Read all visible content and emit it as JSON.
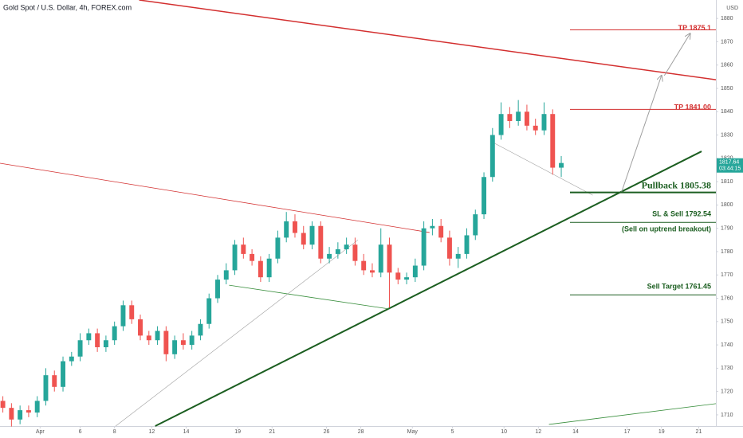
{
  "chart_data": {
    "type": "candlestick",
    "title": "Gold Spot / U.S. Dollar, 4h, FOREX.com",
    "currency": "USD",
    "up_color": "#26a69a",
    "down_color": "#ef5350",
    "x": [
      1,
      4,
      7,
      10,
      13,
      16,
      19,
      22,
      25,
      28,
      31,
      34,
      37,
      40,
      43,
      46,
      49,
      52,
      55,
      58,
      61,
      64,
      67,
      70,
      73,
      76,
      79,
      82,
      85,
      88,
      91,
      94,
      97,
      100,
      103,
      106,
      109,
      112,
      115,
      118,
      121,
      124,
      127,
      130,
      133,
      136,
      139,
      142,
      145,
      148,
      151,
      154,
      157,
      160,
      163,
      166,
      169,
      172,
      175,
      178,
      181,
      184,
      187,
      190,
      193,
      196
    ],
    "open": [
      1716,
      1713,
      1708,
      1712,
      1711,
      1716,
      1727,
      1722,
      1733,
      1735,
      1742,
      1745,
      1739,
      1742,
      1748,
      1757,
      1751,
      1744,
      1742,
      1746,
      1736,
      1742,
      1740,
      1744,
      1749,
      1760,
      1768,
      1772,
      1783,
      1779,
      1776,
      1769,
      1777,
      1786,
      1793,
      1788,
      1783,
      1791,
      1777,
      1779,
      1781,
      1783,
      1776,
      1772,
      1771,
      1783,
      1771,
      1768,
      1769,
      1774,
      1790,
      1791,
      1786,
      1777,
      1779,
      1787,
      1796,
      1812,
      1830,
      1839,
      1836,
      1840,
      1834,
      1832,
      1839,
      1816
    ],
    "high": [
      1718,
      1715,
      1714,
      1714,
      1718,
      1730,
      1729,
      1735,
      1737,
      1745,
      1747,
      1747,
      1744,
      1750,
      1759,
      1759,
      1753,
      1746,
      1748,
      1748,
      1744,
      1745,
      1746,
      1751,
      1762,
      1770,
      1775,
      1785,
      1786,
      1781,
      1778,
      1779,
      1789,
      1797,
      1796,
      1791,
      1793,
      1793,
      1782,
      1784,
      1786,
      1786,
      1779,
      1775,
      1790,
      1786,
      1773,
      1771,
      1777,
      1793,
      1794,
      1794,
      1789,
      1782,
      1790,
      1798,
      1814,
      1833,
      1844,
      1842,
      1845,
      1843,
      1837,
      1844,
      1841,
      1821
    ],
    "low": [
      1711,
      1705,
      1706,
      1709,
      1709,
      1714,
      1720,
      1720,
      1731,
      1733,
      1740,
      1737,
      1737,
      1740,
      1746,
      1749,
      1742,
      1740,
      1740,
      1733,
      1734,
      1738,
      1738,
      1742,
      1747,
      1758,
      1766,
      1770,
      1777,
      1774,
      1767,
      1767,
      1775,
      1784,
      1786,
      1781,
      1781,
      1775,
      1775,
      1777,
      1779,
      1774,
      1770,
      1769,
      1769,
      1756,
      1766,
      1766,
      1767,
      1772,
      1787,
      1784,
      1774,
      1773,
      1777,
      1785,
      1794,
      1810,
      1828,
      1833,
      1834,
      1832,
      1830,
      1830,
      1813,
      1812
    ],
    "close": [
      1713,
      1708,
      1712,
      1711,
      1716,
      1727,
      1722,
      1733,
      1735,
      1742,
      1745,
      1739,
      1742,
      1748,
      1757,
      1751,
      1744,
      1742,
      1746,
      1736,
      1742,
      1740,
      1744,
      1749,
      1760,
      1768,
      1772,
      1783,
      1779,
      1776,
      1769,
      1777,
      1786,
      1793,
      1788,
      1783,
      1791,
      1777,
      1779,
      1781,
      1783,
      1776,
      1772,
      1771,
      1783,
      1771,
      1768,
      1769,
      1774,
      1790,
      1791,
      1786,
      1777,
      1779,
      1787,
      1796,
      1812,
      1830,
      1839,
      1836,
      1840,
      1834,
      1832,
      1839,
      1816,
      1818
    ],
    "xlim": [
      0,
      250
    ],
    "ylim": [
      1705.2,
      1887.9
    ],
    "xticks": [
      {
        "value": 14,
        "label": "Apr"
      },
      {
        "value": 28,
        "label": "6"
      },
      {
        "value": 40,
        "label": "8"
      },
      {
        "value": 53,
        "label": "12"
      },
      {
        "value": 65,
        "label": "14"
      },
      {
        "value": 83,
        "label": "19"
      },
      {
        "value": 95,
        "label": "21"
      },
      {
        "value": 114,
        "label": "26"
      },
      {
        "value": 126,
        "label": "28"
      },
      {
        "value": 144,
        "label": "May"
      },
      {
        "value": 158,
        "label": "5"
      },
      {
        "value": 176,
        "label": "10"
      },
      {
        "value": 188,
        "label": "12"
      },
      {
        "value": 201,
        "label": "14"
      },
      {
        "value": 219,
        "label": "17"
      },
      {
        "value": 231,
        "label": "19"
      },
      {
        "value": 244,
        "label": "21"
      }
    ],
    "yticks": [
      1710,
      1720,
      1730,
      1740,
      1750,
      1760,
      1770,
      1780,
      1790,
      1800,
      1810,
      1820,
      1830,
      1840,
      1850,
      1860,
      1870,
      1880
    ],
    "last_price": {
      "value": 1817.64,
      "countdown": "03:44:15",
      "color": "#26a69a"
    },
    "levels": [
      {
        "price": 1875.1,
        "label": "TP 1875.1",
        "color": "#d32f2f",
        "width": 1
      },
      {
        "price": 1841,
        "label": "TP 1841.00",
        "color": "#d32f2f",
        "width": 1
      },
      {
        "price": 1805.38,
        "label": "Pullback 1805.38",
        "color": "#1b5e20",
        "width": 2
      },
      {
        "price": 1792.54,
        "label": "SL & Sell 1792.54",
        "sublabel": "(Sell on uptrend breakout)",
        "color": "#1b5e20",
        "width": 1
      },
      {
        "price": 1761.45,
        "label": "Sell Target 1761.45",
        "color": "#1b5e20",
        "width": 1
      }
    ],
    "trendlines": [
      {
        "x": [
          48.6,
          250
        ],
        "y": [
          1887.9,
          1853.7
        ],
        "color": "#d32f2f",
        "width": 1.5
      },
      {
        "x": [
          0,
          150
        ],
        "y": [
          1817.9,
          1788.2
        ],
        "color": "#d32f2f",
        "width": 0.8
      },
      {
        "x": [
          54.2,
          245
        ],
        "y": [
          1705.2,
          1823
        ],
        "color": "#1b5e20",
        "width": 2
      },
      {
        "x": [
          191.7,
          250
        ],
        "y": [
          1705.9,
          1714.8
        ],
        "color": "#388e3c",
        "width": 0.8
      },
      {
        "x": [
          80,
          136
        ],
        "y": [
          1765.6,
          1755.4
        ],
        "color": "#388e3c",
        "width": 0.8
      },
      {
        "x": [
          40.4,
          125
        ],
        "y": [
          1705.2,
          1785
        ],
        "color": "#9e9e9e",
        "width": 0.6
      },
      {
        "x": [
          172.8,
          207
        ],
        "y": [
          1826.4,
          1804.2
        ],
        "color": "#9e9e9e",
        "width": 0.6
      }
    ],
    "arrows": [
      {
        "x": [
          217,
          231
        ],
        "y": [
          1805.38,
          1855.5
        ],
        "color": "#9e9e9e"
      },
      {
        "x": [
          232,
          241
        ],
        "y": [
          1855.5,
          1873.5
        ],
        "color": "#9e9e9e"
      }
    ]
  }
}
